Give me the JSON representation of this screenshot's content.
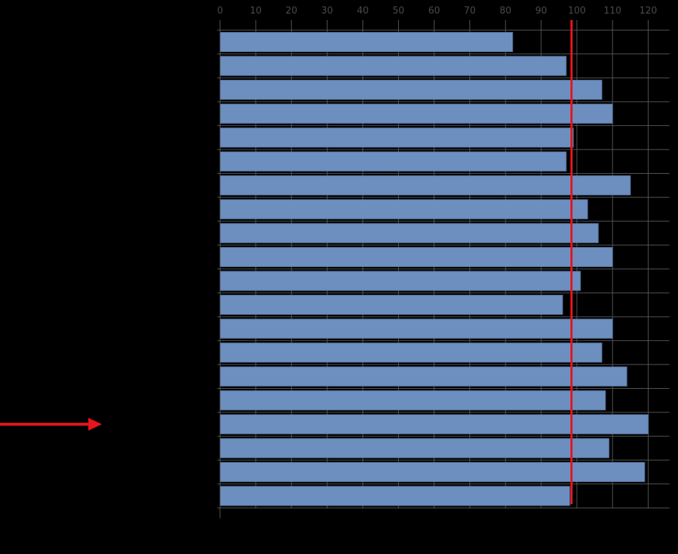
{
  "chart_data": {
    "type": "bar",
    "orientation": "horizontal",
    "title": "",
    "xlabel": "",
    "ylabel": "",
    "xlim": [
      0,
      126
    ],
    "x_ticks": [
      0,
      10,
      20,
      30,
      40,
      50,
      60,
      70,
      80,
      90,
      100,
      110,
      120
    ],
    "x_tick_labels": [
      "0",
      "10",
      "20",
      "30",
      "40",
      "50",
      "60",
      "70",
      "80",
      "90",
      "100",
      "110",
      "120"
    ],
    "grid": true,
    "values": [
      82,
      97,
      107,
      110,
      99,
      97,
      115,
      103,
      106,
      110,
      101,
      96,
      110,
      107,
      114,
      108,
      120,
      109,
      119,
      98
    ],
    "reference_line": {
      "value": 98.5,
      "color": "#e8151b"
    },
    "highlighted_bar_index": 16,
    "colors": {
      "background": "#000000",
      "bar": "#6d8fbf",
      "bar_edge": "#55729d",
      "grid": "#555555",
      "tick_label": "#4a4a4a",
      "pointer_arrow": "#e8151b"
    }
  }
}
